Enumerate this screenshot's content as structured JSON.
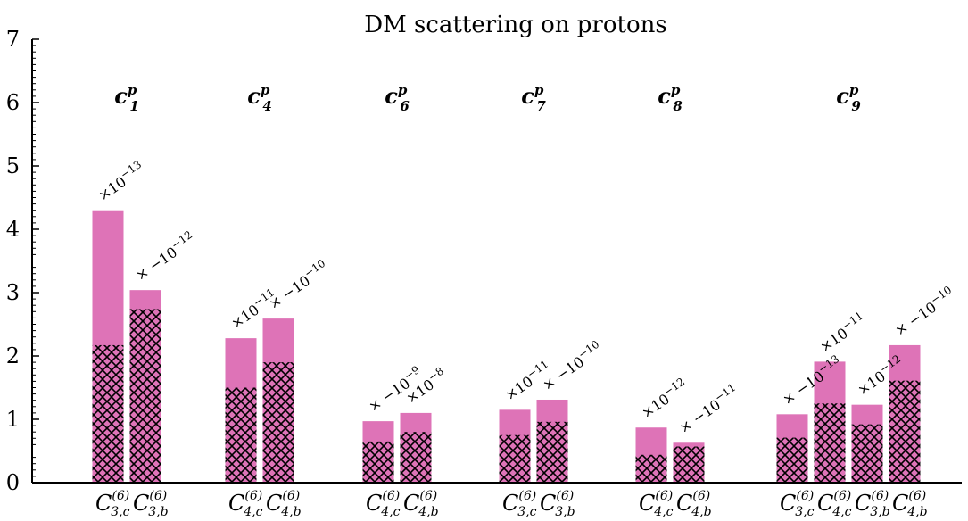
{
  "chart_data": {
    "type": "bar",
    "title": "DM scattering on protons",
    "ylim": [
      0,
      7
    ],
    "yticks": [
      "0",
      "1",
      "2",
      "3",
      "4",
      "5",
      "6",
      "7"
    ],
    "grid": false,
    "colors": {
      "bar": "#de73b7",
      "hatch": "#000000"
    },
    "groups": [
      {
        "coefficient": "c",
        "coef_sup": "p",
        "coef_sub": "1",
        "bars": [
          {
            "category": "C",
            "cat_sup": "(6)",
            "cat_sub": "3,c",
            "value": 4.3,
            "hatched_value": 2.17,
            "scale": "×10",
            "scale_exp": "−13"
          },
          {
            "category": "C",
            "cat_sup": "(6)",
            "cat_sub": "3,b",
            "value": 3.04,
            "hatched_value": 2.74,
            "scale": "× −10",
            "scale_exp": "−12"
          }
        ]
      },
      {
        "coefficient": "c",
        "coef_sup": "p",
        "coef_sub": "4",
        "bars": [
          {
            "category": "C",
            "cat_sup": "(6)",
            "cat_sub": "4,c",
            "value": 2.28,
            "hatched_value": 1.5,
            "scale": "×10",
            "scale_exp": "−11"
          },
          {
            "category": "C",
            "cat_sup": "(6)",
            "cat_sub": "4,b",
            "value": 2.59,
            "hatched_value": 1.9,
            "scale": "× −10",
            "scale_exp": "−10"
          }
        ]
      },
      {
        "coefficient": "c",
        "coef_sup": "p",
        "coef_sub": "6",
        "bars": [
          {
            "category": "C",
            "cat_sup": "(6)",
            "cat_sub": "4,c",
            "value": 0.97,
            "hatched_value": 0.65,
            "scale": "× −10",
            "scale_exp": "−9"
          },
          {
            "category": "C",
            "cat_sup": "(6)",
            "cat_sub": "4,b",
            "value": 1.1,
            "hatched_value": 0.8,
            "scale": "×10",
            "scale_exp": "−8"
          }
        ]
      },
      {
        "coefficient": "c",
        "coef_sup": "p",
        "coef_sub": "7",
        "bars": [
          {
            "category": "C",
            "cat_sup": "(6)",
            "cat_sub": "3,c",
            "value": 1.15,
            "hatched_value": 0.75,
            "scale": "×10",
            "scale_exp": "−11"
          },
          {
            "category": "C",
            "cat_sup": "(6)",
            "cat_sub": "3,b",
            "value": 1.31,
            "hatched_value": 0.96,
            "scale": "× −10",
            "scale_exp": "−10"
          }
        ]
      },
      {
        "coefficient": "c",
        "coef_sup": "p",
        "coef_sub": "8",
        "bars": [
          {
            "category": "C",
            "cat_sup": "(6)",
            "cat_sub": "4,c",
            "value": 0.87,
            "hatched_value": 0.44,
            "scale": "×10",
            "scale_exp": "−12"
          },
          {
            "category": "C",
            "cat_sup": "(6)",
            "cat_sub": "4,b",
            "value": 0.63,
            "hatched_value": 0.57,
            "scale": "× −10",
            "scale_exp": "−11"
          }
        ]
      },
      {
        "coefficient": "c",
        "coef_sup": "p",
        "coef_sub": "9",
        "bars": [
          {
            "category": "C",
            "cat_sup": "(6)",
            "cat_sub": "3,c",
            "value": 1.08,
            "hatched_value": 0.71,
            "scale": "× −10",
            "scale_exp": "−13"
          },
          {
            "category": "C",
            "cat_sup": "(6)",
            "cat_sub": "4,c",
            "value": 1.91,
            "hatched_value": 1.25,
            "scale": "×10",
            "scale_exp": "−11"
          },
          {
            "category": "C",
            "cat_sup": "(6)",
            "cat_sub": "3,b",
            "value": 1.23,
            "hatched_value": 0.92,
            "scale": "×10",
            "scale_exp": "−12"
          },
          {
            "category": "C",
            "cat_sup": "(6)",
            "cat_sub": "4,b",
            "value": 2.17,
            "hatched_value": 1.61,
            "scale": "× −10",
            "scale_exp": "−10"
          }
        ]
      }
    ]
  }
}
